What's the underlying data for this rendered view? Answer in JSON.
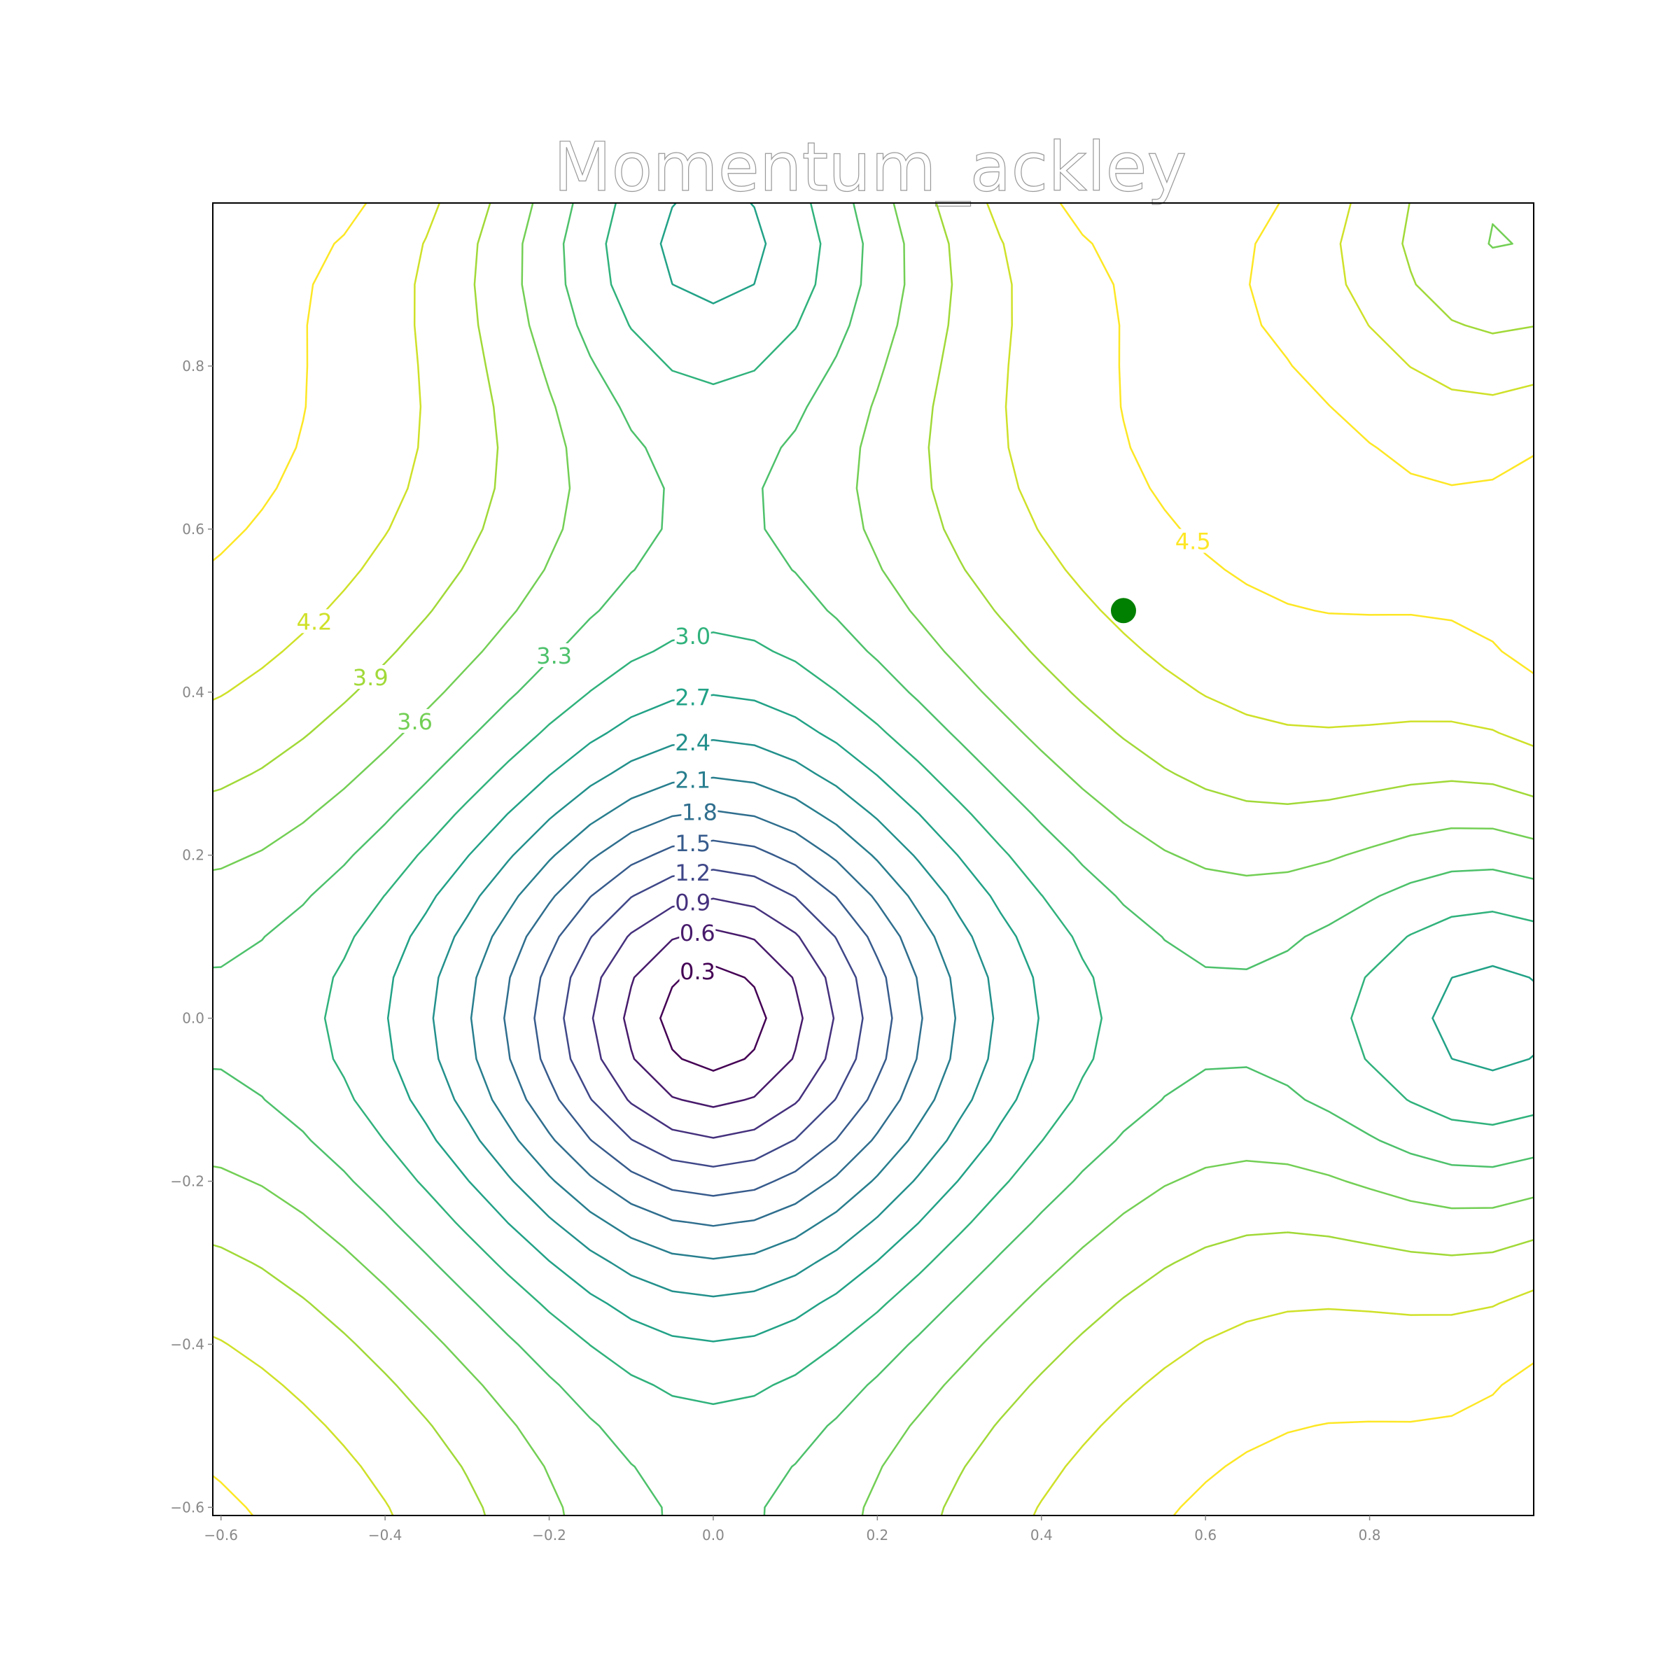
{
  "chart_data": {
    "type": "contour",
    "title": "Momentum_ackley",
    "xlabel": "",
    "ylabel": "",
    "xlim": [
      -0.61,
      1.0
    ],
    "ylim": [
      -0.61,
      1.0
    ],
    "x_ticks": [
      "−0.6",
      "−0.4",
      "−0.2",
      "0.0",
      "0.2",
      "0.4",
      "0.6",
      "0.8"
    ],
    "x_tick_values": [
      -0.6,
      -0.4,
      -0.2,
      0.0,
      0.2,
      0.4,
      0.6,
      0.8
    ],
    "y_ticks": [
      "−0.6",
      "−0.4",
      "−0.2",
      "0.0",
      "0.2",
      "0.4",
      "0.6",
      "0.8"
    ],
    "y_tick_values": [
      -0.6,
      -0.4,
      -0.2,
      0.0,
      0.2,
      0.4,
      0.6,
      0.8
    ],
    "function": "ackley",
    "levels": [
      0.3,
      0.6,
      0.9,
      1.2,
      1.5,
      1.8,
      2.1,
      2.4,
      2.7,
      3.0,
      3.3,
      3.6,
      3.9,
      4.2,
      4.5
    ],
    "level_labels": [
      "0.3",
      "0.6",
      "0.9",
      "1.2",
      "1.5",
      "1.8",
      "2.1",
      "2.4",
      "2.7",
      "3.0",
      "3.3",
      "3.6",
      "3.9",
      "4.2",
      "4.5"
    ],
    "colormap": "viridis",
    "grid": false,
    "point": {
      "x": 0.5,
      "y": 0.5,
      "color": "#008000"
    }
  }
}
